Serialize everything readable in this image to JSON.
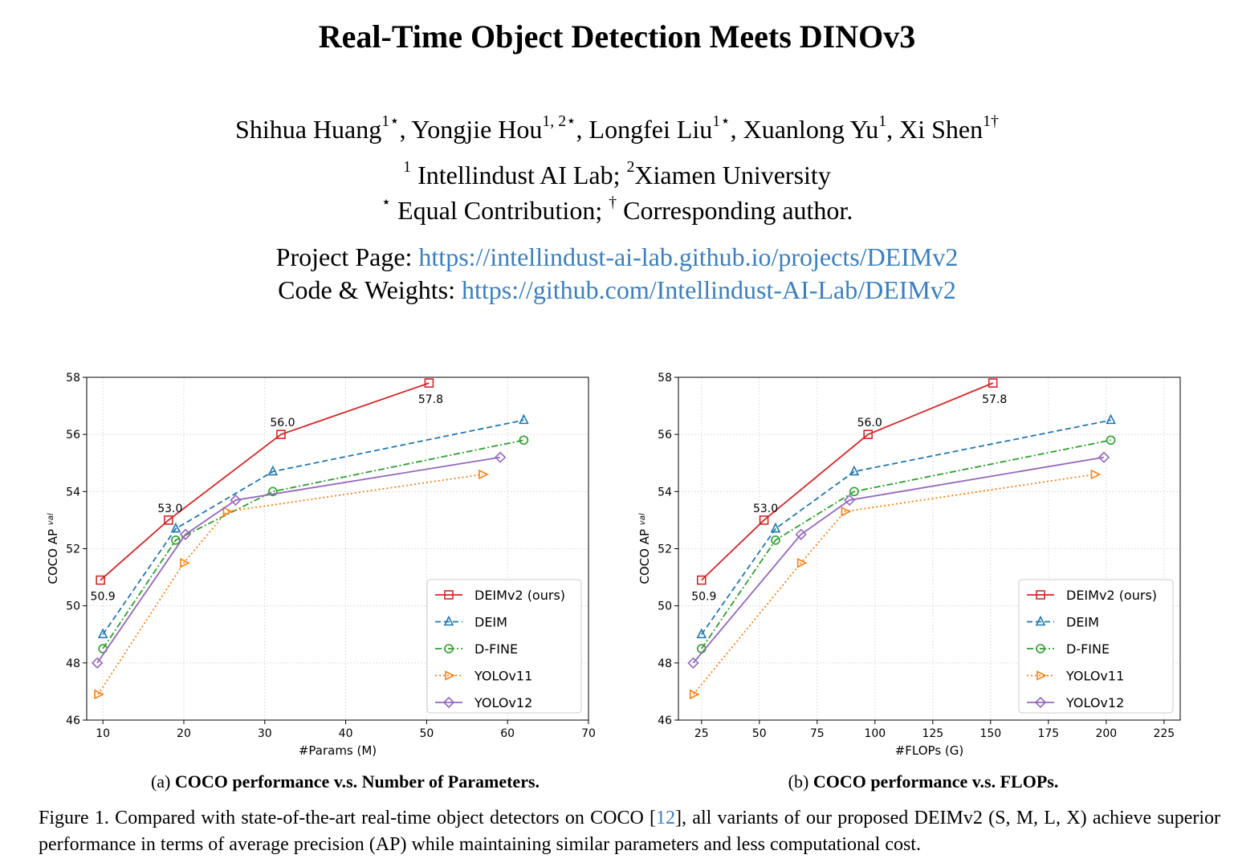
{
  "paper": {
    "title": "Real-Time Object Detection Meets DINOv3",
    "authors": [
      {
        "name": "Shihua Huang",
        "sup": "1⋆",
        "sep": ", "
      },
      {
        "name": "Yongjie Hou",
        "sup": "1, 2⋆",
        "sep": ", "
      },
      {
        "name": "Longfei Liu",
        "sup": "1⋆",
        "sep": ", "
      },
      {
        "name": "Xuanlong Yu",
        "sup": "1",
        "sep": ", "
      },
      {
        "name": "Xi Shen",
        "sup": "1†",
        "sep": ""
      }
    ],
    "affiliation": {
      "sup1": "1",
      "org1": " Intellindust AI Lab; ",
      "sup2": "2",
      "org2": "Xiamen University"
    },
    "notes": {
      "star": "⋆",
      "equal": " Equal Contribution; ",
      "dagger": "†",
      "corresponding": " Corresponding author."
    },
    "links": {
      "project_label": "Project Page: ",
      "project_url": "https://intellindust-ai-lab.github.io/projects/DEIMv2",
      "code_label": "Code & Weights: ",
      "code_url": "https://github.com/Intellindust-AI-Lab/DEIMv2"
    },
    "subcaptions": {
      "a_prefix": "(a) ",
      "a_bold": "COCO performance v.s. Number of Parameters.",
      "b_prefix": "(b) ",
      "b_bold": "COCO performance v.s. FLOPs."
    },
    "figure_caption": {
      "pre": "Figure 1.  Compared with state-of-the-art real-time object detectors on COCO [",
      "cite": "12",
      "post": "], all variants of our proposed DEIMv2 (S, M, L, X) achieve superior performance in terms of average precision (AP) while maintaining similar parameters and less computational cost."
    }
  },
  "chart_data": [
    {
      "type": "line",
      "xlabel": "#Params (M)",
      "ylabel": "COCO AP",
      "ylabel_sup": "val",
      "xlim": [
        8,
        70
      ],
      "ylim": [
        46,
        58
      ],
      "xticks": [
        10,
        20,
        30,
        40,
        50,
        60,
        70
      ],
      "yticks": [
        46,
        48,
        50,
        52,
        54,
        56,
        58
      ],
      "grid": true,
      "legend_position": "lower-right",
      "series": [
        {
          "name": "DEIMv2 (ours)",
          "color": "#d62728",
          "marker": "square",
          "dash": "solid",
          "x": [
            9.7,
            18.1,
            32,
            50.3
          ],
          "y": [
            50.9,
            53.0,
            56.0,
            57.8
          ]
        },
        {
          "name": "DEIM",
          "color": "#1f77b4",
          "marker": "triangle-up",
          "dash": "dashed",
          "x": [
            10,
            19,
            31,
            62
          ],
          "y": [
            49.0,
            52.7,
            54.7,
            56.5
          ]
        },
        {
          "name": "D-FINE",
          "color": "#2ca02c",
          "marker": "circle",
          "dash": "dashdot",
          "x": [
            10,
            19,
            31,
            62
          ],
          "y": [
            48.5,
            52.3,
            54.0,
            55.8
          ]
        },
        {
          "name": "YOLOv11",
          "color": "#ff7f0e",
          "marker": "triangle-right",
          "dash": "dotted",
          "x": [
            9.4,
            20,
            25.3,
            56.9
          ],
          "y": [
            46.9,
            51.5,
            53.3,
            54.6
          ]
        },
        {
          "name": "YOLOv12",
          "color": "#9467bd",
          "marker": "diamond",
          "dash": "solid",
          "x": [
            9.3,
            20.2,
            26.4,
            59.1
          ],
          "y": [
            48.0,
            52.5,
            53.7,
            55.2
          ]
        }
      ],
      "annotations": [
        {
          "text": "50.9",
          "x": 9.7,
          "y": 50.9,
          "pos": "below"
        },
        {
          "text": "53.0",
          "x": 18.1,
          "y": 53.0,
          "pos": "above"
        },
        {
          "text": "56.0",
          "x": 32,
          "y": 56.0,
          "pos": "above"
        },
        {
          "text": "57.8",
          "x": 50.3,
          "y": 57.8,
          "pos": "below"
        }
      ]
    },
    {
      "type": "line",
      "xlabel": "#FLOPs (G)",
      "ylabel": "COCO AP",
      "ylabel_sup": "val",
      "xlim": [
        15,
        232
      ],
      "ylim": [
        46,
        58
      ],
      "xticks": [
        25,
        50,
        75,
        100,
        125,
        150,
        175,
        200,
        225
      ],
      "yticks": [
        46,
        48,
        50,
        52,
        54,
        56,
        58
      ],
      "grid": true,
      "legend_position": "lower-right",
      "series": [
        {
          "name": "DEIMv2 (ours)",
          "color": "#d62728",
          "marker": "square",
          "dash": "solid",
          "x": [
            25,
            52,
            97,
            151
          ],
          "y": [
            50.9,
            53.0,
            56.0,
            57.8
          ]
        },
        {
          "name": "DEIM",
          "color": "#1f77b4",
          "marker": "triangle-up",
          "dash": "dashed",
          "x": [
            25,
            57,
            91,
            202
          ],
          "y": [
            49.0,
            52.7,
            54.7,
            56.5
          ]
        },
        {
          "name": "D-FINE",
          "color": "#2ca02c",
          "marker": "circle",
          "dash": "dashdot",
          "x": [
            25,
            57,
            91,
            202
          ],
          "y": [
            48.5,
            52.3,
            54.0,
            55.8
          ]
        },
        {
          "name": "YOLOv11",
          "color": "#ff7f0e",
          "marker": "triangle-right",
          "dash": "dotted",
          "x": [
            21.5,
            68,
            87,
            195
          ],
          "y": [
            46.9,
            51.5,
            53.3,
            54.6
          ]
        },
        {
          "name": "YOLOv12",
          "color": "#9467bd",
          "marker": "diamond",
          "dash": "solid",
          "x": [
            21.4,
            68,
            89,
            199
          ],
          "y": [
            48.0,
            52.5,
            53.7,
            55.2
          ]
        }
      ],
      "annotations": [
        {
          "text": "50.9",
          "x": 25,
          "y": 50.9,
          "pos": "below"
        },
        {
          "text": "53.0",
          "x": 52,
          "y": 53.0,
          "pos": "above"
        },
        {
          "text": "56.0",
          "x": 97,
          "y": 56.0,
          "pos": "above"
        },
        {
          "text": "57.8",
          "x": 151,
          "y": 57.8,
          "pos": "below"
        }
      ]
    }
  ]
}
